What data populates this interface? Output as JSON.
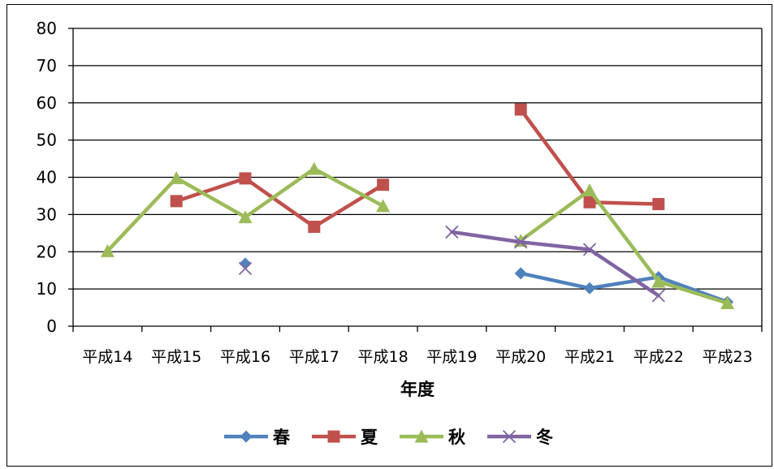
{
  "chart_data": {
    "type": "line",
    "xlabel": "年度",
    "ylabel": "",
    "ylim": [
      0,
      80
    ],
    "yticks": [
      0,
      10,
      20,
      30,
      40,
      50,
      60,
      70,
      80
    ],
    "categories": [
      "平成14",
      "平成15",
      "平成16",
      "平成17",
      "平成18",
      "平成19",
      "平成20",
      "平成21",
      "平成22",
      "平成23"
    ],
    "grid": "horizontal",
    "legend_position": "bottom",
    "series": [
      {
        "name": "春",
        "color": "#4f81bd",
        "marker": "diamond",
        "values": [
          null,
          null,
          16.8,
          null,
          null,
          null,
          14.2,
          10.2,
          13.2,
          6.5
        ]
      },
      {
        "name": "夏",
        "color": "#c0504d",
        "marker": "square",
        "values": [
          null,
          33.6,
          39.7,
          26.7,
          38.0,
          null,
          58.2,
          33.3,
          32.8,
          null
        ]
      },
      {
        "name": "秋",
        "color": "#9bbb59",
        "marker": "triangle",
        "values": [
          20.2,
          39.8,
          29.3,
          42.3,
          32.3,
          null,
          23.0,
          36.5,
          12.0,
          6.2
        ]
      },
      {
        "name": "冬",
        "color": "#8064a2",
        "marker": "x",
        "values": [
          null,
          null,
          15.5,
          null,
          null,
          25.3,
          22.6,
          20.6,
          8.2,
          null
        ]
      }
    ]
  }
}
